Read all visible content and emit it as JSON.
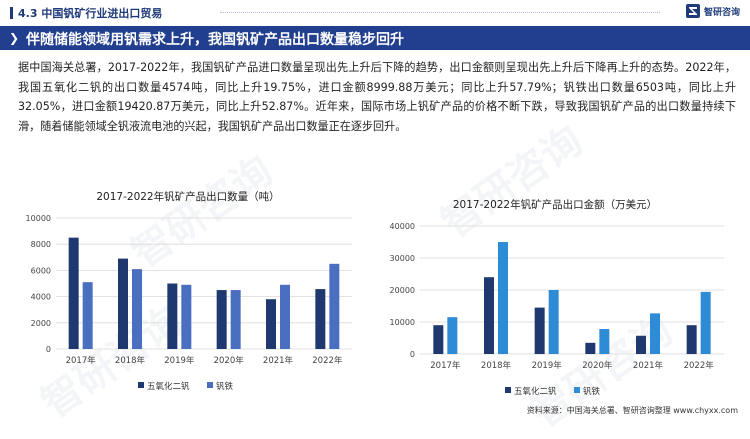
{
  "header": {
    "section": "4.3 中国钒矿行业进出口贸易",
    "logo_text": "智研咨询"
  },
  "banner": {
    "title": "伴随储能领域用钒需求上升，我国钒矿产品出口数量稳步回升"
  },
  "paragraph": "据中国海关总署，2017-2022年，我国钒矿产品进口数量呈现出先上升后下降的趋势，出口金额则呈现出先上升后下降再上升的态势。2022年，我国五氧化二钒的出口数量4574吨，同比上升19.75%，进口金额8999.88万美元；同比上升57.79%；钒铁出口数量6503吨，同比上升32.05%，进口金额19420.87万美元，同比上升52.87%。近年来，国际市场上钒矿产品的价格不断下跌，导致我国钒矿产品的出口数量持续下滑，随着储能领域全钒液流电池的兴起，我国钒矿产品出口数量正在逐步回升。",
  "footer": "资料来源：中国海关总署、智研咨询整理    www.chyxx.com",
  "colors": {
    "series1": "#1f3870",
    "series2": "#4b6fc0",
    "series2_alt": "#2e8bd6",
    "banner": "#213f8e"
  },
  "chart_data": [
    {
      "type": "bar",
      "title": "2017-2022年钒矿产品出口数量（吨）",
      "categories": [
        "2017年",
        "2018年",
        "2019年",
        "2020年",
        "2021年",
        "2022年"
      ],
      "series": [
        {
          "name": "五氧化二钒",
          "values": [
            8500,
            6900,
            5000,
            4500,
            3800,
            4574
          ]
        },
        {
          "name": "钒铁",
          "values": [
            5100,
            6100,
            4900,
            4500,
            4900,
            6503
          ]
        }
      ],
      "ylim": [
        0,
        10000
      ],
      "yticks": [
        "0",
        "2000",
        "4000",
        "6000",
        "8000",
        "10000"
      ],
      "grid": true,
      "legend": "bottom"
    },
    {
      "type": "bar",
      "title": "2017-2022年钒矿产品出口金额（万美元）",
      "categories": [
        "2017年",
        "2018年",
        "2019年",
        "2020年",
        "2021年",
        "2022年"
      ],
      "series": [
        {
          "name": "五氧化二钒",
          "values": [
            9000,
            24000,
            14500,
            3500,
            5700,
            9000
          ]
        },
        {
          "name": "钒铁",
          "values": [
            11500,
            35000,
            20000,
            7800,
            12700,
            19421
          ]
        }
      ],
      "ylim": [
        0,
        40000
      ],
      "yticks": [
        "0",
        "10000",
        "20000",
        "30000",
        "40000"
      ],
      "grid": true,
      "legend": "bottom"
    }
  ]
}
